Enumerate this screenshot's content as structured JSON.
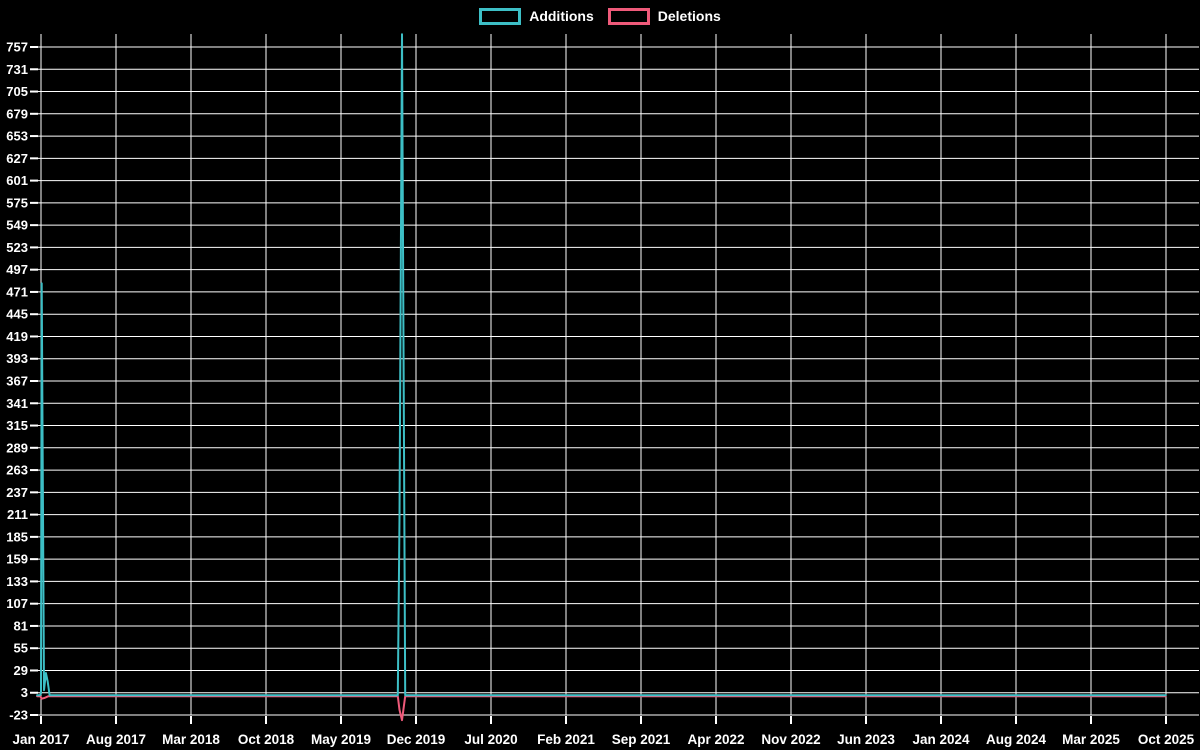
{
  "chart_data": {
    "type": "line",
    "background": "#000000",
    "grid_color": "#ffffff",
    "text_color": "#ffffff",
    "legend": [
      {
        "label": "Additions",
        "color": "#3dbfc6"
      },
      {
        "label": "Deletions",
        "color": "#ef5a7a"
      }
    ],
    "y_axis": {
      "min": -23,
      "max": 757,
      "step": 26,
      "tick_labels": [
        "757",
        "731",
        "705",
        "679",
        "653",
        "627",
        "601",
        "575",
        "549",
        "523",
        "497",
        "471",
        "445",
        "419",
        "393",
        "367",
        "341",
        "315",
        "289",
        "263",
        "237",
        "211",
        "185",
        "159",
        "133",
        "107",
        "81",
        "55",
        "29",
        "3",
        "-23"
      ]
    },
    "x_axis": {
      "tick_labels": [
        "Jan 2017",
        "Aug 2017",
        "Mar 2018",
        "Oct 2018",
        "May 2019",
        "Dec 2019",
        "Jul 2020",
        "Feb 2021",
        "Sep 2021",
        "Apr 2022",
        "Nov 2022",
        "Jun 2023",
        "Jan 2024",
        "Aug 2024",
        "Mar 2025",
        "Oct 2025"
      ],
      "weeks_per_tick": 30.44
    },
    "series": [
      {
        "name": "Deletions",
        "color": "#ef5a7a",
        "points_weeks_value": [
          [
            -1.6,
            -1
          ],
          [
            -0.3,
            -1
          ],
          [
            0.3,
            -4
          ],
          [
            1.5,
            -3
          ],
          [
            3,
            -1
          ],
          [
            80,
            -1
          ],
          [
            144.8,
            -1
          ],
          [
            145.5,
            -17
          ],
          [
            146.5,
            -29
          ],
          [
            147.8,
            -1
          ],
          [
            250,
            -1
          ],
          [
            456.5,
            -1
          ]
        ]
      },
      {
        "name": "Additions",
        "color": "#3dbfc6",
        "points_weeks_value": [
          [
            -1.6,
            0
          ],
          [
            -0.5,
            0
          ],
          [
            0,
            2
          ],
          [
            0.3,
            481
          ],
          [
            1.2,
            6
          ],
          [
            2,
            26
          ],
          [
            2.7,
            16
          ],
          [
            3.5,
            0
          ],
          [
            80,
            0
          ],
          [
            144.8,
            0
          ],
          [
            145.5,
            207
          ],
          [
            146.5,
            772
          ],
          [
            147.8,
            0
          ],
          [
            250,
            0
          ],
          [
            456.5,
            0
          ]
        ]
      }
    ]
  }
}
